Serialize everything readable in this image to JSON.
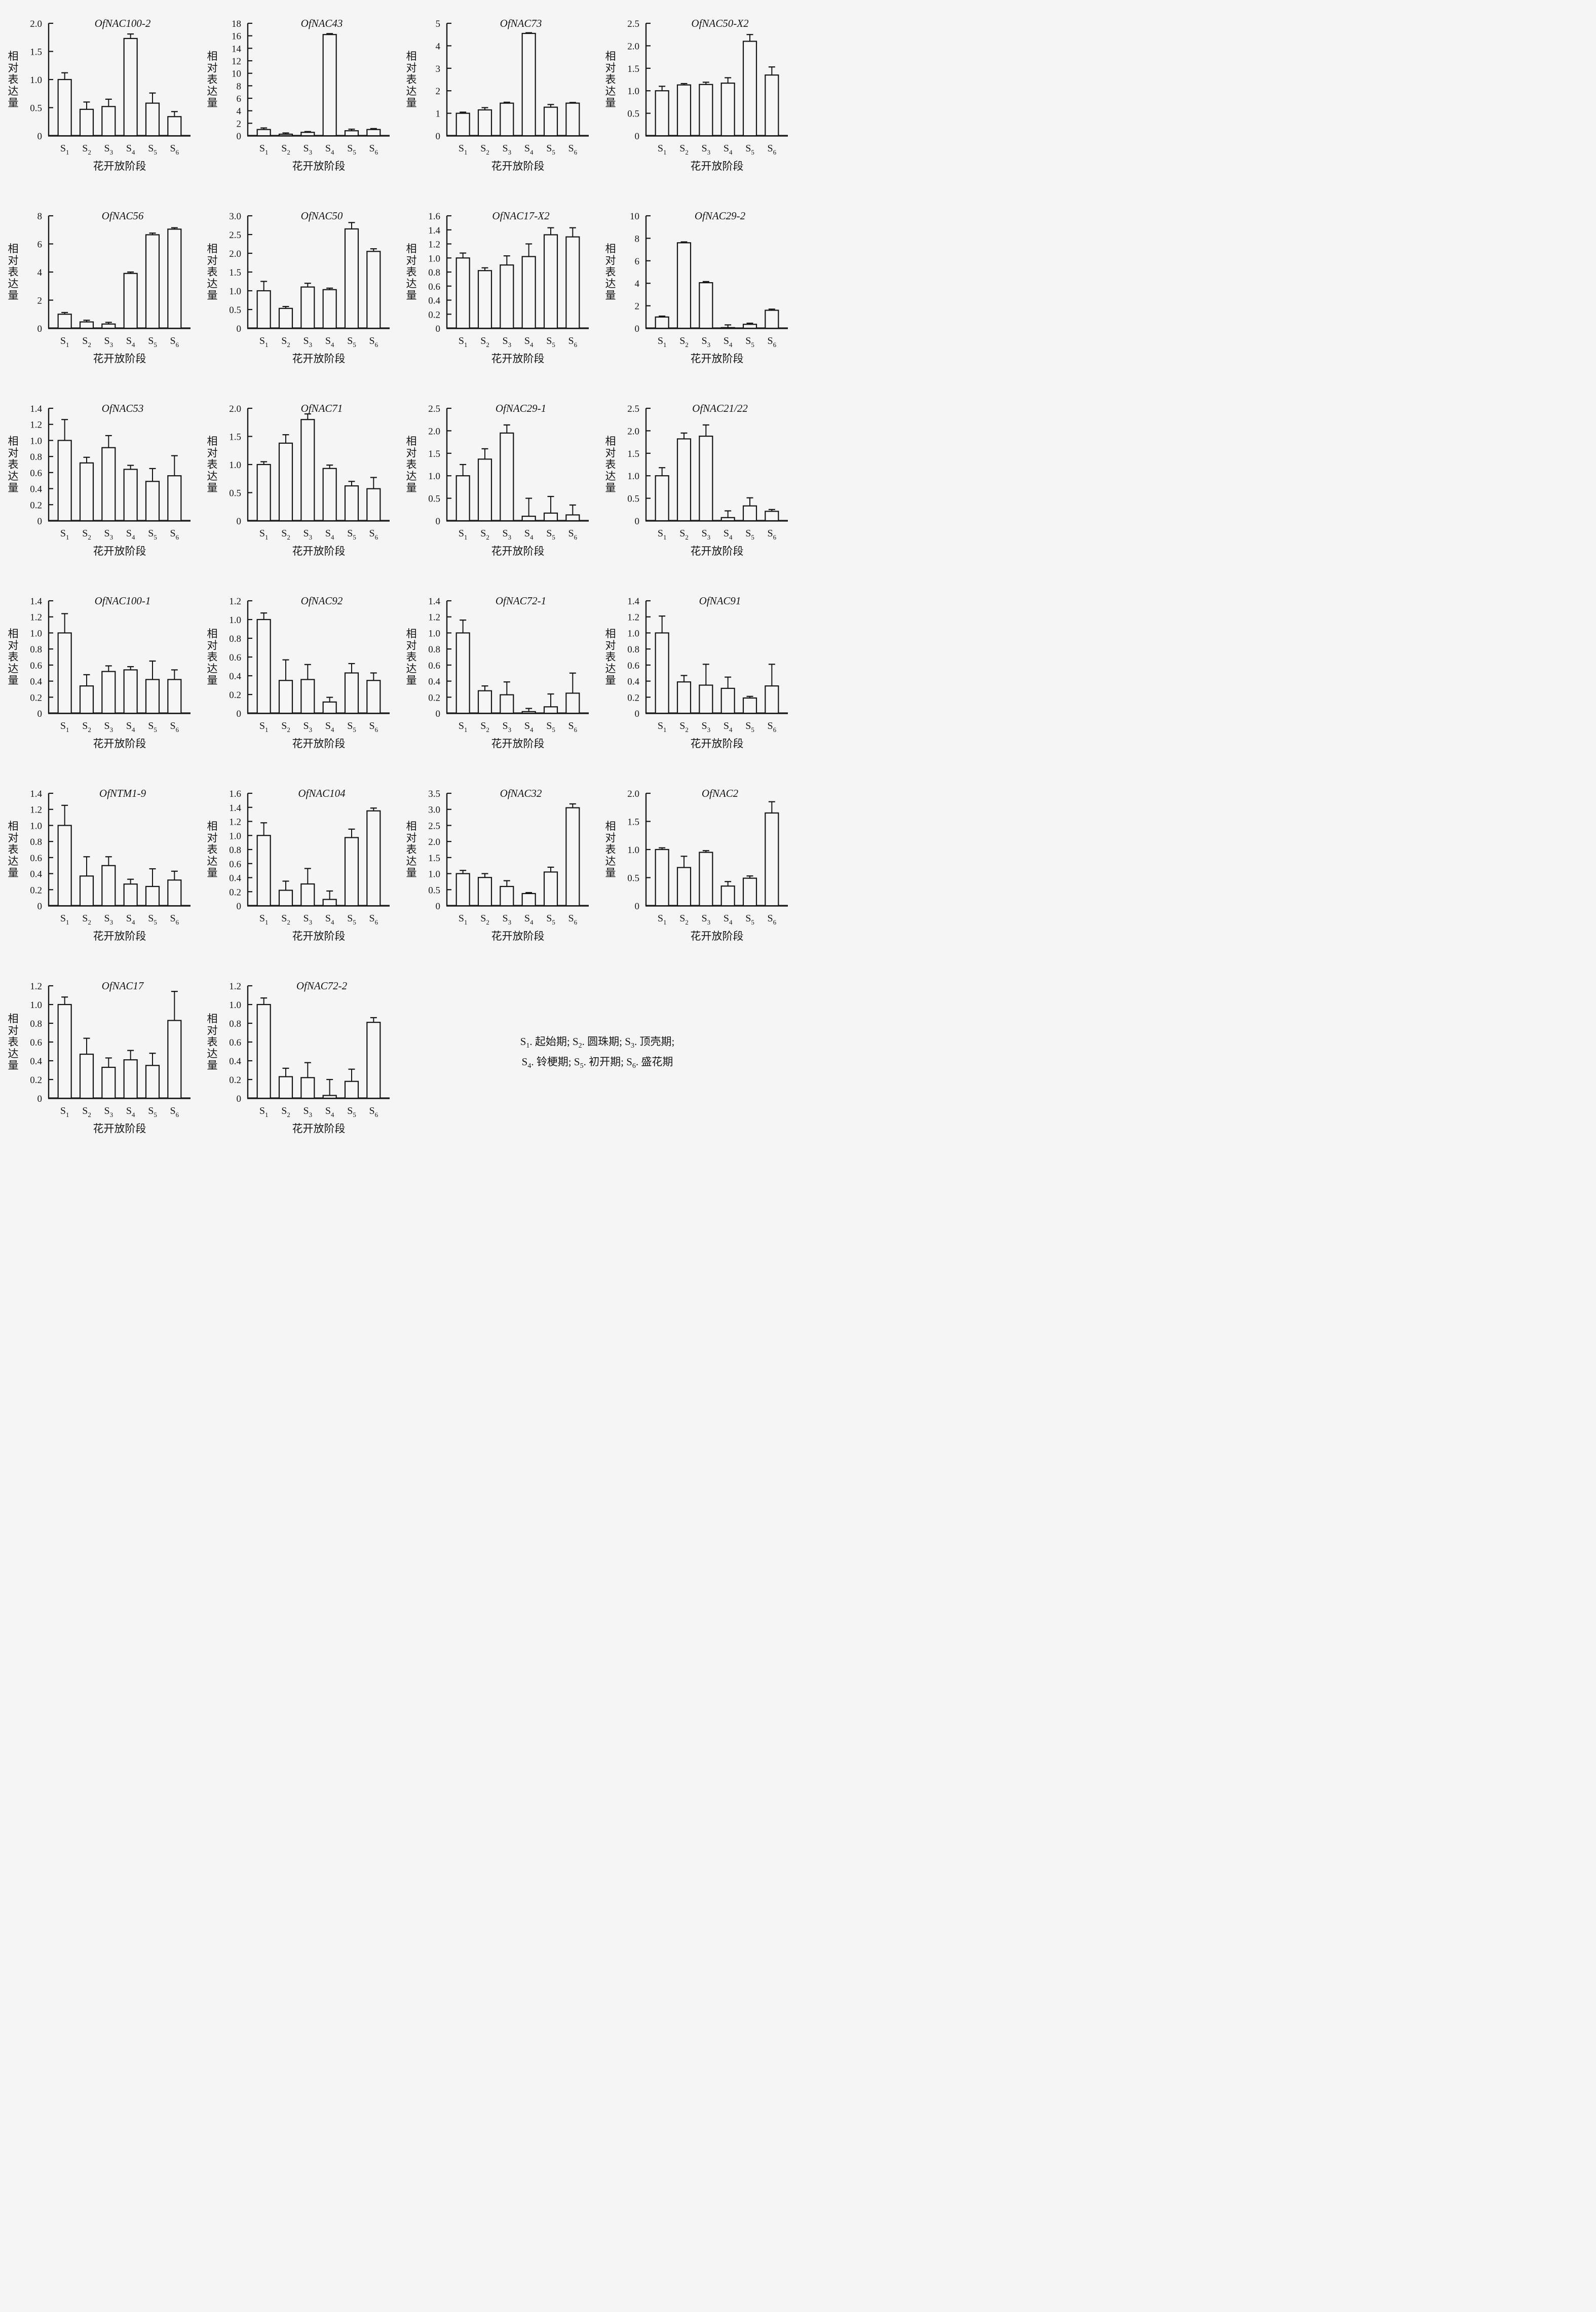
{
  "style": {
    "background": "#f5f5f5",
    "foreground": "#151515",
    "bar_fill": "#f6f6f6",
    "bar_stroke": "#151515"
  },
  "figure": {
    "ylabel": "相对表达量",
    "xlabel": "花开放阶段",
    "stage_base": "S",
    "stage_subs": [
      "1",
      "2",
      "3",
      "4",
      "5",
      "6"
    ],
    "legend_lines": [
      [
        {
          "base": "S",
          "sub": "1",
          "text": ". 起始期; "
        },
        {
          "base": "S",
          "sub": "2",
          "text": ". 圆珠期; "
        },
        {
          "base": "S",
          "sub": "3",
          "text": ". 顶壳期;"
        }
      ],
      [
        {
          "base": "S",
          "sub": "4",
          "text": ". 铃梗期; "
        },
        {
          "base": "S",
          "sub": "5",
          "text": ". 初开期; "
        },
        {
          "base": "S",
          "sub": "6",
          "text": ". 盛花期"
        }
      ]
    ]
  },
  "chart_data": [
    {
      "type": "bar",
      "title": "OfNAC100-2",
      "xlabel": "花开放阶段",
      "ylabel": "相对表达量",
      "categories": [
        "S1",
        "S2",
        "S3",
        "S4",
        "S5",
        "S6"
      ],
      "ymax": 2.0,
      "yticks": [
        "0",
        "0.5",
        "1.0",
        "1.5",
        "2.0"
      ],
      "values": [
        1.0,
        0.47,
        0.52,
        1.73,
        0.58,
        0.34
      ],
      "errors": [
        0.12,
        0.13,
        0.13,
        0.08,
        0.18,
        0.09
      ]
    },
    {
      "type": "bar",
      "title": "OfNAC43",
      "xlabel": "花开放阶段",
      "ylabel": "相对表达量",
      "categories": [
        "S1",
        "S2",
        "S3",
        "S4",
        "S5",
        "S6"
      ],
      "ymax": 18,
      "yticks": [
        "0",
        "2",
        "4",
        "6",
        "8",
        "10",
        "12",
        "14",
        "16",
        "18"
      ],
      "values": [
        1.0,
        0.25,
        0.55,
        16.2,
        0.8,
        1.0
      ],
      "errors": [
        0.25,
        0.2,
        0.12,
        0.15,
        0.25,
        0.15
      ]
    },
    {
      "type": "bar",
      "title": "OfNAC73",
      "xlabel": "花开放阶段",
      "ylabel": "相对表达量",
      "categories": [
        "S1",
        "S2",
        "S3",
        "S4",
        "S5",
        "S6"
      ],
      "ymax": 5,
      "yticks": [
        "0",
        "1",
        "2",
        "3",
        "4",
        "5"
      ],
      "values": [
        1.0,
        1.15,
        1.45,
        4.55,
        1.27,
        1.45
      ],
      "errors": [
        0.05,
        0.1,
        0.04,
        0.03,
        0.12,
        0.03
      ]
    },
    {
      "type": "bar",
      "title": "OfNAC50-X2",
      "xlabel": "花开放阶段",
      "ylabel": "相对表达量",
      "categories": [
        "S1",
        "S2",
        "S3",
        "S4",
        "S5",
        "S6"
      ],
      "ymax": 2.5,
      "yticks": [
        "0",
        "0.5",
        "1.0",
        "1.5",
        "2.0",
        "2.5"
      ],
      "values": [
        1.0,
        1.13,
        1.14,
        1.17,
        2.1,
        1.35
      ],
      "errors": [
        0.1,
        0.03,
        0.05,
        0.12,
        0.15,
        0.18
      ]
    },
    {
      "type": "bar",
      "title": "OfNAC56",
      "xlabel": "花开放阶段",
      "ylabel": "相对表达量",
      "categories": [
        "S1",
        "S2",
        "S3",
        "S4",
        "S5",
        "S6"
      ],
      "ymax": 8,
      "yticks": [
        "0",
        "2",
        "4",
        "6",
        "8"
      ],
      "values": [
        1.0,
        0.45,
        0.3,
        3.9,
        6.65,
        7.05
      ],
      "errors": [
        0.12,
        0.12,
        0.12,
        0.1,
        0.12,
        0.1
      ]
    },
    {
      "type": "bar",
      "title": "OfNAC50",
      "xlabel": "花开放阶段",
      "ylabel": "相对表达量",
      "categories": [
        "S1",
        "S2",
        "S3",
        "S4",
        "S5",
        "S6"
      ],
      "ymax": 3.0,
      "yticks": [
        "0",
        "0.5",
        "1.0",
        "1.5",
        "2.0",
        "2.5",
        "3.0"
      ],
      "values": [
        1.0,
        0.53,
        1.1,
        1.03,
        2.65,
        2.05
      ],
      "errors": [
        0.25,
        0.05,
        0.1,
        0.04,
        0.17,
        0.07
      ]
    },
    {
      "type": "bar",
      "title": "OfNAC17-X2",
      "xlabel": "花开放阶段",
      "ylabel": "相对表达量",
      "categories": [
        "S1",
        "S2",
        "S3",
        "S4",
        "S5",
        "S6"
      ],
      "ymax": 1.6,
      "yticks": [
        "0",
        "0.2",
        "0.4",
        "0.6",
        "0.8",
        "1.0",
        "1.2",
        "1.4",
        "1.6"
      ],
      "values": [
        1.0,
        0.82,
        0.9,
        1.02,
        1.33,
        1.3
      ],
      "errors": [
        0.07,
        0.04,
        0.13,
        0.18,
        0.1,
        0.13
      ]
    },
    {
      "type": "bar",
      "title": "OfNAC29-2",
      "xlabel": "花开放阶段",
      "ylabel": "相对表达量",
      "categories": [
        "S1",
        "S2",
        "S3",
        "S4",
        "S5",
        "S6"
      ],
      "ymax": 10,
      "yticks": [
        "0",
        "2",
        "4",
        "6",
        "8",
        "10"
      ],
      "values": [
        1.0,
        7.6,
        4.05,
        0.05,
        0.35,
        1.6
      ],
      "errors": [
        0.08,
        0.08,
        0.1,
        0.25,
        0.1,
        0.1
      ]
    },
    {
      "type": "bar",
      "title": "OfNAC53",
      "xlabel": "花开放阶段",
      "ylabel": "相对表达量",
      "categories": [
        "S1",
        "S2",
        "S3",
        "S4",
        "S5",
        "S6"
      ],
      "ymax": 1.4,
      "yticks": [
        "0",
        "0.2",
        "0.4",
        "0.6",
        "0.8",
        "1.0",
        "1.2",
        "1.4"
      ],
      "values": [
        1.0,
        0.72,
        0.91,
        0.64,
        0.49,
        0.56
      ],
      "errors": [
        0.26,
        0.07,
        0.15,
        0.05,
        0.16,
        0.25
      ]
    },
    {
      "type": "bar",
      "title": "OfNAC71",
      "xlabel": "花开放阶段",
      "ylabel": "相对表达量",
      "categories": [
        "S1",
        "S2",
        "S3",
        "S4",
        "S5",
        "S6"
      ],
      "ymax": 2.0,
      "yticks": [
        "0",
        "0.5",
        "1.0",
        "1.5",
        "2.0"
      ],
      "values": [
        1.0,
        1.38,
        1.8,
        0.93,
        0.62,
        0.57
      ],
      "errors": [
        0.05,
        0.15,
        0.1,
        0.06,
        0.08,
        0.2
      ]
    },
    {
      "type": "bar",
      "title": "OfNAC29-1",
      "xlabel": "花开放阶段",
      "ylabel": "相对表达量",
      "categories": [
        "S1",
        "S2",
        "S3",
        "S4",
        "S5",
        "S6"
      ],
      "ymax": 2.5,
      "yticks": [
        "0",
        "0.5",
        "1.0",
        "1.5",
        "2.0",
        "2.5"
      ],
      "values": [
        1.0,
        1.37,
        1.95,
        0.1,
        0.17,
        0.13
      ],
      "errors": [
        0.25,
        0.23,
        0.18,
        0.4,
        0.37,
        0.22
      ]
    },
    {
      "type": "bar",
      "title": "OfNAC21/22",
      "xlabel": "花开放阶段",
      "ylabel": "相对表达量",
      "categories": [
        "S1",
        "S2",
        "S3",
        "S4",
        "S5",
        "S6"
      ],
      "ymax": 2.5,
      "yticks": [
        "0",
        "0.5",
        "1.0",
        "1.5",
        "2.0",
        "2.5"
      ],
      "values": [
        1.0,
        1.82,
        1.88,
        0.07,
        0.33,
        0.21
      ],
      "errors": [
        0.18,
        0.13,
        0.25,
        0.15,
        0.18,
        0.04
      ]
    },
    {
      "type": "bar",
      "title": "OfNAC100-1",
      "xlabel": "花开放阶段",
      "ylabel": "相对表达量",
      "categories": [
        "S1",
        "S2",
        "S3",
        "S4",
        "S5",
        "S6"
      ],
      "ymax": 1.4,
      "yticks": [
        "0",
        "0.2",
        "0.4",
        "0.6",
        "0.8",
        "1.0",
        "1.2",
        "1.4"
      ],
      "values": [
        1.0,
        0.34,
        0.52,
        0.54,
        0.42,
        0.42
      ],
      "errors": [
        0.24,
        0.14,
        0.07,
        0.04,
        0.23,
        0.12
      ]
    },
    {
      "type": "bar",
      "title": "OfNAC92",
      "xlabel": "花开放阶段",
      "ylabel": "相对表达量",
      "categories": [
        "S1",
        "S2",
        "S3",
        "S4",
        "S5",
        "S6"
      ],
      "ymax": 1.2,
      "yticks": [
        "0",
        "0.2",
        "0.4",
        "0.6",
        "0.8",
        "1.0",
        "1.2"
      ],
      "values": [
        1.0,
        0.35,
        0.36,
        0.12,
        0.43,
        0.35
      ],
      "errors": [
        0.07,
        0.22,
        0.16,
        0.05,
        0.1,
        0.08
      ]
    },
    {
      "type": "bar",
      "title": "OfNAC72-1",
      "xlabel": "花开放阶段",
      "ylabel": "相对表达量",
      "categories": [
        "S1",
        "S2",
        "S3",
        "S4",
        "S5",
        "S6"
      ],
      "ymax": 1.4,
      "yticks": [
        "0",
        "0.2",
        "0.4",
        "0.6",
        "0.8",
        "1.0",
        "1.2",
        "1.4"
      ],
      "values": [
        1.0,
        0.28,
        0.23,
        0.02,
        0.08,
        0.25
      ],
      "errors": [
        0.16,
        0.06,
        0.16,
        0.04,
        0.16,
        0.25
      ]
    },
    {
      "type": "bar",
      "title": "OfNAC91",
      "xlabel": "花开放阶段",
      "ylabel": "相对表达量",
      "categories": [
        "S1",
        "S2",
        "S3",
        "S4",
        "S5",
        "S6"
      ],
      "ymax": 1.4,
      "yticks": [
        "0",
        "0.2",
        "0.4",
        "0.6",
        "0.8",
        "1.0",
        "1.2",
        "1.4"
      ],
      "values": [
        1.0,
        0.39,
        0.35,
        0.31,
        0.19,
        0.34
      ],
      "errors": [
        0.21,
        0.08,
        0.26,
        0.14,
        0.02,
        0.27
      ]
    },
    {
      "type": "bar",
      "title": "OfNTM1-9",
      "xlabel": "花开放阶段",
      "ylabel": "相对表达量",
      "categories": [
        "S1",
        "S2",
        "S3",
        "S4",
        "S5",
        "S6"
      ],
      "ymax": 1.4,
      "yticks": [
        "0",
        "0.2",
        "0.4",
        "0.6",
        "0.8",
        "1.0",
        "1.2",
        "1.4"
      ],
      "values": [
        1.0,
        0.37,
        0.5,
        0.27,
        0.24,
        0.32
      ],
      "errors": [
        0.25,
        0.24,
        0.11,
        0.06,
        0.22,
        0.11
      ]
    },
    {
      "type": "bar",
      "title": "OfNAC104",
      "xlabel": "花开放阶段",
      "ylabel": "相对表达量",
      "categories": [
        "S1",
        "S2",
        "S3",
        "S4",
        "S5",
        "S6"
      ],
      "ymax": 1.6,
      "yticks": [
        "0",
        "0.2",
        "0.4",
        "0.6",
        "0.8",
        "1.0",
        "1.2",
        "1.4",
        "1.6"
      ],
      "values": [
        1.0,
        0.22,
        0.31,
        0.09,
        0.97,
        1.35
      ],
      "errors": [
        0.18,
        0.13,
        0.22,
        0.12,
        0.12,
        0.04
      ]
    },
    {
      "type": "bar",
      "title": "OfNAC32",
      "xlabel": "花开放阶段",
      "ylabel": "相对表达量",
      "categories": [
        "S1",
        "S2",
        "S3",
        "S4",
        "S5",
        "S6"
      ],
      "ymax": 3.5,
      "yticks": [
        "0",
        "0.5",
        "1.0",
        "1.5",
        "2.0",
        "2.5",
        "3.0",
        "3.5"
      ],
      "values": [
        1.0,
        0.88,
        0.6,
        0.38,
        1.05,
        3.05
      ],
      "errors": [
        0.1,
        0.12,
        0.18,
        0.03,
        0.15,
        0.12
      ]
    },
    {
      "type": "bar",
      "title": "OfNAC2",
      "xlabel": "花开放阶段",
      "ylabel": "相对表达量",
      "categories": [
        "S1",
        "S2",
        "S3",
        "S4",
        "S5",
        "S6"
      ],
      "ymax": 2.0,
      "yticks": [
        "0",
        "0.5",
        "1.0",
        "1.5",
        "2.0"
      ],
      "values": [
        1.0,
        0.68,
        0.95,
        0.35,
        0.49,
        1.65
      ],
      "errors": [
        0.03,
        0.2,
        0.03,
        0.08,
        0.04,
        0.2
      ]
    },
    {
      "type": "bar",
      "title": "OfNAC17",
      "xlabel": "花开放阶段",
      "ylabel": "相对表达量",
      "categories": [
        "S1",
        "S2",
        "S3",
        "S4",
        "S5",
        "S6"
      ],
      "ymax": 1.2,
      "yticks": [
        "0",
        "0.2",
        "0.4",
        "0.6",
        "0.8",
        "1.0",
        "1.2"
      ],
      "values": [
        1.0,
        0.47,
        0.33,
        0.41,
        0.35,
        0.83
      ],
      "errors": [
        0.08,
        0.17,
        0.1,
        0.1,
        0.13,
        0.31
      ]
    },
    {
      "type": "bar",
      "title": "OfNAC72-2",
      "xlabel": "花开放阶段",
      "ylabel": "相对表达量",
      "categories": [
        "S1",
        "S2",
        "S3",
        "S4",
        "S5",
        "S6"
      ],
      "ymax": 1.2,
      "yticks": [
        "0",
        "0.2",
        "0.4",
        "0.6",
        "0.8",
        "1.0",
        "1.2"
      ],
      "values": [
        1.0,
        0.23,
        0.22,
        0.03,
        0.18,
        0.81
      ],
      "errors": [
        0.07,
        0.09,
        0.16,
        0.17,
        0.13,
        0.05
      ]
    }
  ]
}
